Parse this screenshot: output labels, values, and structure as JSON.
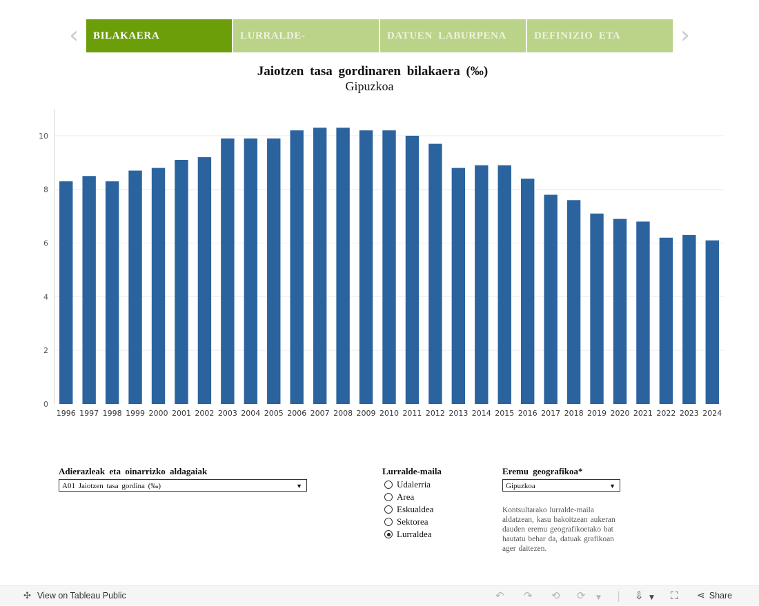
{
  "tabs": [
    {
      "label": "BILAKAERA"
    },
    {
      "label": "LURRALDE-"
    },
    {
      "label": "DATUEN  LABURPENA"
    },
    {
      "label": "DEFINIZIO  ETA"
    }
  ],
  "nav": {
    "prev_icon": "‹",
    "next_icon": "›"
  },
  "title": "Jaiotzen  tasa  gordinaren  bilakaera  (‰)",
  "subtitle": "Gipuzkoa",
  "colors": {
    "bar": "#2b639e",
    "tab_active": "#6c9e0a",
    "tab_inactive": "#bad388"
  },
  "chart_data": {
    "type": "bar",
    "categories": [
      "1996",
      "1997",
      "1998",
      "1999",
      "2000",
      "2001",
      "2002",
      "2003",
      "2004",
      "2005",
      "2006",
      "2007",
      "2008",
      "2009",
      "2010",
      "2011",
      "2012",
      "2013",
      "2014",
      "2015",
      "2016",
      "2017",
      "2018",
      "2019",
      "2020",
      "2021",
      "2022",
      "2023",
      "2024"
    ],
    "values": [
      8.3,
      8.5,
      8.3,
      8.7,
      8.8,
      9.1,
      9.2,
      9.9,
      9.9,
      9.9,
      10.2,
      10.3,
      10.3,
      10.2,
      10.2,
      10.0,
      9.7,
      8.8,
      8.9,
      8.9,
      8.4,
      7.8,
      7.6,
      7.1,
      6.9,
      6.8,
      6.2,
      6.3,
      6.1
    ],
    "yticks": [
      "0",
      "2",
      "4",
      "6",
      "8",
      "10"
    ],
    "ylim": [
      0,
      11
    ],
    "grid": true
  },
  "filters": {
    "indicator": {
      "label": "Adierazleak  eta  oinarrizko  aldagaiak",
      "value": "A01  Jaiotzen  tasa  gordina  (‰)",
      "caret": "▼"
    },
    "level": {
      "label": "Lurralde-maila",
      "options": [
        {
          "label": "Udalerria",
          "checked": false
        },
        {
          "label": "Area",
          "checked": false
        },
        {
          "label": "Eskualdea",
          "checked": false
        },
        {
          "label": "Sektorea",
          "checked": false
        },
        {
          "label": "Lurraldea",
          "checked": true
        }
      ]
    },
    "area": {
      "label": "Eremu  geografikoa*",
      "value": "Gipuzkoa",
      "caret": "▼"
    },
    "note": "Kontsultarako lurralde-maila aldatzean, kasu bakoitzean aukeran dauden eremu geografikoetako bat hautatu behar da, datuak grafikoan ager daitezen."
  },
  "footer": {
    "view_label": "View on Tableau Public",
    "share_label": "Share"
  }
}
